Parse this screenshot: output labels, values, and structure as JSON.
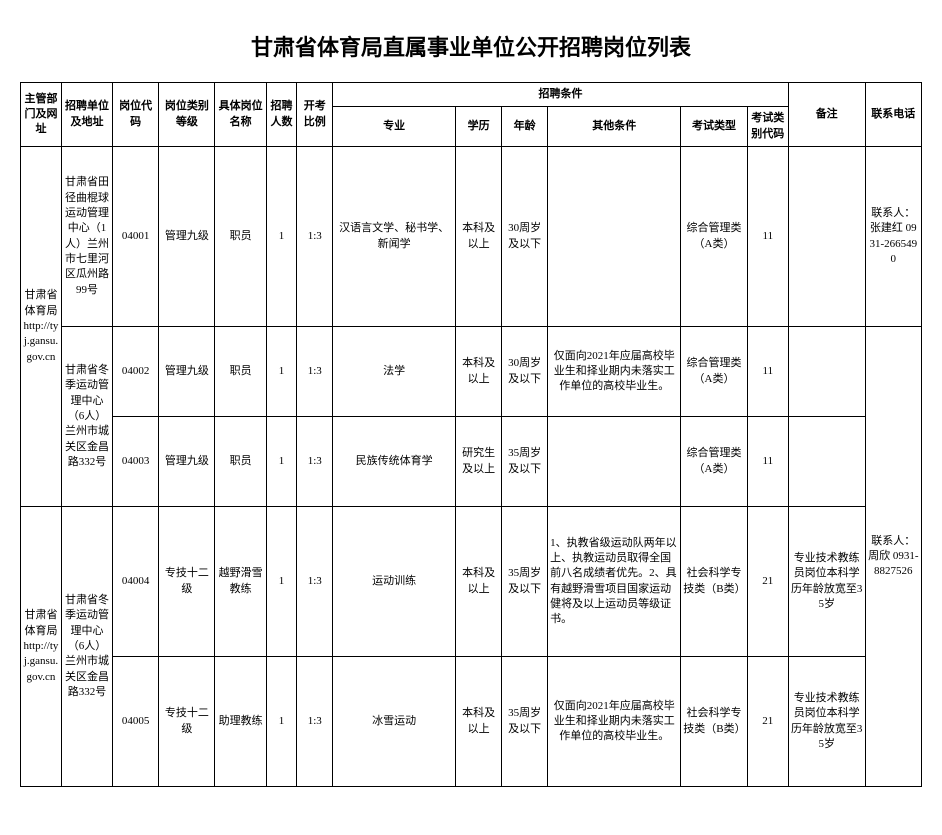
{
  "title": "甘肃省体育局直属事业单位公开招聘岗位列表",
  "headers": {
    "dept": "主管部门及网址",
    "unit": "招聘单位及地址",
    "code": "岗位代码",
    "level": "岗位类别等级",
    "pos": "具体岗位名称",
    "num": "招聘人数",
    "ratio": "开考比例",
    "cond": "招聘条件",
    "major": "专业",
    "edu": "学历",
    "age": "年龄",
    "other": "其他条件",
    "exam": "考试类型",
    "examc": "考试类别代码",
    "note": "备注",
    "tel": "联系电话"
  },
  "dept1": "甘肃省体育局http://tyj.gansu.gov.cn",
  "dept2": "甘肃省体育局http://tyj.gansu.gov.cn",
  "unit1": "甘肃省田径曲棍球运动管理中心（1人）兰州市七里河区瓜州路99号",
  "unit2": "甘肃省冬季运动管理中心（6人）兰州市城关区金昌路332号",
  "unit3": "甘肃省冬季运动管理中心（6人）兰州市城关区金昌路332号",
  "rows": [
    {
      "code": "04001",
      "level": "管理九级",
      "pos": "职员",
      "num": "1",
      "ratio": "1:3",
      "major": "汉语言文学、秘书学、新闻学",
      "edu": "本科及以上",
      "age": "30周岁及以下",
      "other": "",
      "exam": "综合管理类（A类）",
      "examc": "11",
      "note": "",
      "tel": "联系人：张建红 0931-2665490"
    },
    {
      "code": "04002",
      "level": "管理九级",
      "pos": "职员",
      "num": "1",
      "ratio": "1:3",
      "major": "法学",
      "edu": "本科及以上",
      "age": "30周岁及以下",
      "other": "仅面向2021年应届高校毕业生和择业期内未落实工作单位的高校毕业生。",
      "exam": "综合管理类（A类）",
      "examc": "11",
      "note": ""
    },
    {
      "code": "04003",
      "level": "管理九级",
      "pos": "职员",
      "num": "1",
      "ratio": "1:3",
      "major": "民族传统体育学",
      "edu": "研究生及以上",
      "age": "35周岁及以下",
      "other": "",
      "exam": "综合管理类（A类）",
      "examc": "11",
      "note": ""
    },
    {
      "code": "04004",
      "level": "专技十二级",
      "pos": "越野滑雪教练",
      "num": "1",
      "ratio": "1:3",
      "major": "运动训练",
      "edu": "本科及以上",
      "age": "35周岁及以下",
      "other": "1、执教省级运动队两年以上、执教运动员取得全国前八名成绩者优先。2、具有越野滑雪项目国家运动健将及以上运动员等级证书。",
      "exam": "社会科学专技类（B类）",
      "examc": "21",
      "note": "专业技术教练员岗位本科学历年龄放宽至35岁",
      "tel": "联系人：周欣 0931-8827526"
    },
    {
      "code": "04005",
      "level": "专技十二级",
      "pos": "助理教练",
      "num": "1",
      "ratio": "1:3",
      "major": "冰雪运动",
      "edu": "本科及以上",
      "age": "35周岁及以下",
      "other": "仅面向2021年应届高校毕业生和择业期内未落实工作单位的高校毕业生。",
      "exam": "社会科学专技类（B类）",
      "examc": "21",
      "note": "专业技术教练员岗位本科学历年龄放宽至35岁"
    }
  ]
}
